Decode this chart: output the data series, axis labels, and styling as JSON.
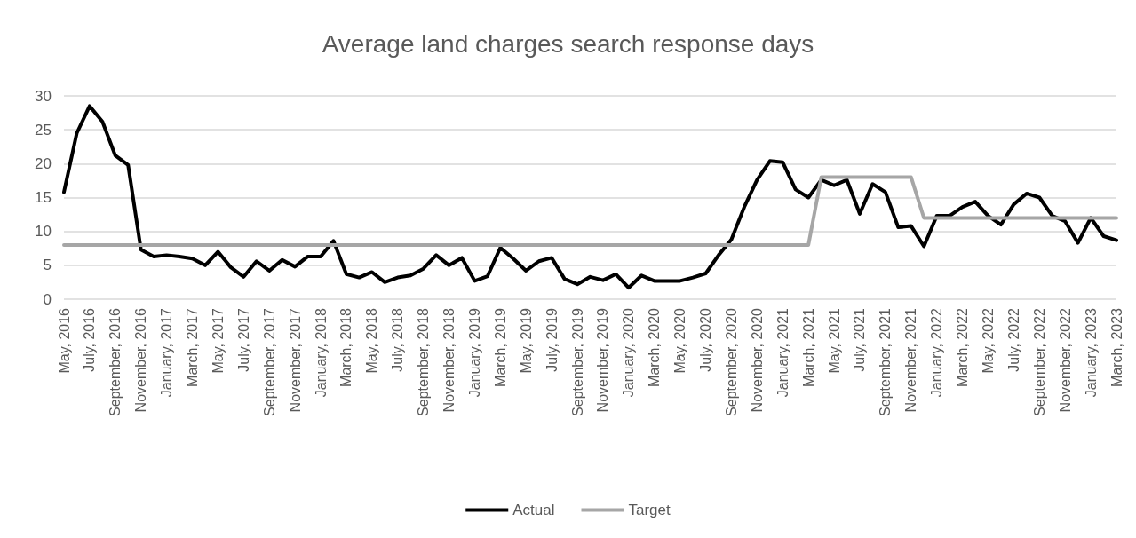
{
  "chart_data": {
    "type": "line",
    "title": "Average land charges search response days",
    "categories": [
      "May, 2016",
      null,
      "July, 2016",
      null,
      "September, 2016",
      null,
      "November, 2016",
      null,
      "January, 2017",
      null,
      "March, 2017",
      null,
      "May, 2017",
      null,
      "July, 2017",
      null,
      "September, 2017",
      null,
      "November, 2017",
      null,
      "January, 2018",
      null,
      "March, 2018",
      null,
      "May, 2018",
      null,
      "July, 2018",
      null,
      "September, 2018",
      null,
      "November, 2018",
      null,
      "January, 2019",
      null,
      "March, 2019",
      null,
      "May, 2019",
      null,
      "July, 2019",
      null,
      "September, 2019",
      null,
      "November, 2019",
      null,
      "January, 2020",
      null,
      "March, 2020",
      null,
      "May, 2020",
      null,
      "July, 2020",
      null,
      "September, 2020",
      null,
      "November, 2020",
      null,
      "January, 2021",
      null,
      "March, 2021",
      null,
      "May, 2021",
      null,
      "July, 2021",
      null,
      "September, 2021",
      null,
      "November, 2021",
      null,
      "January, 2022",
      null,
      "March, 2022",
      null,
      "May, 2022",
      null,
      "July, 2022",
      null,
      "September, 2022",
      null,
      "November, 2022",
      null,
      "January, 2023",
      null,
      "March, 2023"
    ],
    "series": [
      {
        "name": "Actual",
        "color": "#000000",
        "values": [
          15.8,
          24.5,
          28.5,
          26.2,
          21.2,
          19.8,
          7.3,
          6.3,
          6.5,
          6.3,
          6.0,
          5.0,
          7.0,
          4.7,
          3.3,
          5.6,
          4.2,
          5.8,
          4.8,
          6.3,
          6.3,
          8.6,
          3.7,
          3.2,
          4.0,
          2.5,
          3.2,
          3.5,
          4.5,
          6.5,
          5.0,
          6.1,
          2.7,
          3.4,
          7.6,
          6.0,
          4.2,
          5.6,
          6.1,
          3.0,
          2.2,
          3.3,
          2.8,
          3.7,
          1.7,
          3.5,
          2.7,
          2.7,
          2.7,
          3.2,
          3.8,
          6.5,
          8.8,
          13.6,
          17.6,
          20.4,
          20.2,
          16.2,
          15.0,
          17.6,
          16.8,
          17.6,
          12.6,
          17.0,
          15.8,
          10.6,
          10.8,
          7.8,
          12.3,
          12.3,
          13.6,
          14.4,
          12.3,
          11.0,
          14.0,
          15.6,
          15.0,
          12.3,
          11.5,
          8.3,
          12.0,
          9.3,
          8.7
        ]
      },
      {
        "name": "Target",
        "color": "#a6a6a6",
        "values": [
          8,
          8,
          8,
          8,
          8,
          8,
          8,
          8,
          8,
          8,
          8,
          8,
          8,
          8,
          8,
          8,
          8,
          8,
          8,
          8,
          8,
          8,
          8,
          8,
          8,
          8,
          8,
          8,
          8,
          8,
          8,
          8,
          8,
          8,
          8,
          8,
          8,
          8,
          8,
          8,
          8,
          8,
          8,
          8,
          8,
          8,
          8,
          8,
          8,
          8,
          8,
          8,
          8,
          8,
          8,
          8,
          8,
          8,
          8,
          18,
          18,
          18,
          18,
          18,
          18,
          18,
          18,
          12,
          12,
          12,
          12,
          12,
          12,
          12,
          12,
          12,
          12,
          12,
          12,
          12,
          12,
          12,
          12
        ]
      }
    ],
    "ylim": [
      0,
      30
    ],
    "yticks": [
      0,
      5,
      10,
      15,
      20,
      25,
      30
    ],
    "grid": "y",
    "legend": "bottom",
    "marker": "none",
    "line_style": "solid"
  }
}
